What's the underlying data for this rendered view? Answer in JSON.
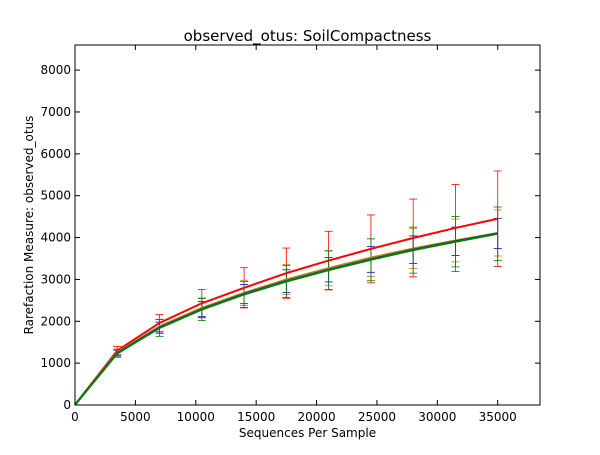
{
  "chart_data": {
    "type": "line",
    "title": "observed_otus: SoilCompactness",
    "xlabel": "Sequences Per Sample",
    "ylabel": "Rarefaction Measure: observed_otus",
    "xlim": [
      0,
      38500
    ],
    "ylim": [
      0,
      8600
    ],
    "xticks": [
      0,
      5000,
      10000,
      15000,
      20000,
      25000,
      30000,
      35000
    ],
    "yticks": [
      0,
      1000,
      2000,
      3000,
      4000,
      5000,
      6000,
      7000,
      8000
    ],
    "grid": false,
    "legend": "none",
    "x": [
      10,
      3500,
      7000,
      10500,
      14000,
      17500,
      21000,
      24500,
      28000,
      31500,
      35000
    ],
    "series": [
      {
        "color": "#ff0000",
        "values": [
          10,
          1300,
          1960,
          2430,
          2800,
          3150,
          3450,
          3730,
          3990,
          4230,
          4450
        ],
        "err": [
          0,
          100,
          200,
          330,
          480,
          600,
          700,
          810,
          930,
          1040,
          1140
        ]
      },
      {
        "color": "#b8860b",
        "values": [
          10,
          1260,
          1880,
          2320,
          2680,
          3000,
          3270,
          3520,
          3740,
          3930,
          4110
        ],
        "err": [
          0,
          80,
          170,
          240,
          300,
          360,
          420,
          450,
          480,
          510,
          550
        ]
      },
      {
        "color": "#0000ff",
        "values": [
          10,
          1240,
          1850,
          2290,
          2650,
          2960,
          3230,
          3480,
          3710,
          3910,
          4100
        ],
        "err": [
          0,
          70,
          130,
          180,
          230,
          270,
          290,
          310,
          330,
          340,
          360
        ]
      },
      {
        "color": "#008000",
        "values": [
          10,
          1230,
          1840,
          2280,
          2640,
          2950,
          3220,
          3470,
          3700,
          3900,
          4090
        ],
        "err": [
          0,
          90,
          200,
          260,
          310,
          380,
          460,
          500,
          550,
          600,
          640
        ]
      }
    ]
  }
}
